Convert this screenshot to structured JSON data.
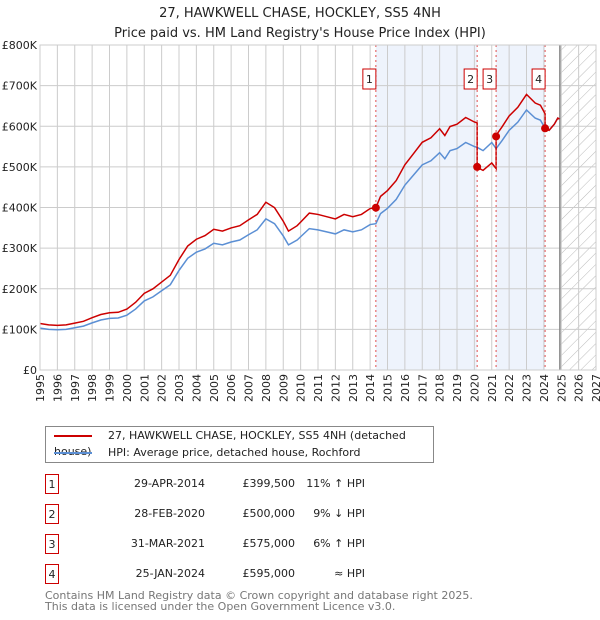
{
  "chart_data": {
    "type": "line",
    "title": "27, HAWKWELL CHASE, HOCKLEY, SS5 4NH",
    "subtitle": "Price paid vs. HM Land Registry's House Price Index (HPI)",
    "xlim": [
      1995,
      2027
    ],
    "ylim": [
      0,
      800000
    ],
    "y_ticks": [
      "£0",
      "£100K",
      "£200K",
      "£300K",
      "£400K",
      "£500K",
      "£600K",
      "£700K",
      "£800K"
    ],
    "x_ticks": [
      "1995",
      "1996",
      "1997",
      "1998",
      "1999",
      "2000",
      "2001",
      "2002",
      "2003",
      "2004",
      "2005",
      "2006",
      "2007",
      "2008",
      "2009",
      "2010",
      "2011",
      "2012",
      "2013",
      "2014",
      "2015",
      "2016",
      "2017",
      "2018",
      "2019",
      "2020",
      "2021",
      "2022",
      "2023",
      "2024",
      "2025",
      "2026",
      "2027"
    ],
    "grid": true,
    "legend_position": "bottom",
    "hpi_series": {
      "name": "HPI: Average price, detached house, Rochford",
      "color": "#5b8fd4",
      "x": [
        1995,
        1995.5,
        1996,
        1996.5,
        1997,
        1997.5,
        1998,
        1998.5,
        1999,
        1999.5,
        2000,
        2000.5,
        2001,
        2001.5,
        2002,
        2002.5,
        2003,
        2003.5,
        2004,
        2004.5,
        2005,
        2005.5,
        2006,
        2006.5,
        2007,
        2007.5,
        2008,
        2008.5,
        2009,
        2009.3,
        2009.8,
        2010,
        2010.5,
        2011,
        2011.5,
        2012,
        2012.5,
        2013,
        2013.5,
        2014,
        2014.33,
        2014.6,
        2015,
        2015.5,
        2016,
        2016.5,
        2017,
        2017.5,
        2018,
        2018.3,
        2018.6,
        2019,
        2019.5,
        2020,
        2020.16,
        2020.5,
        2021,
        2021.25,
        2021.6,
        2022,
        2022.5,
        2023,
        2023.5,
        2023.8,
        2024.07,
        2024.3,
        2024.6,
        2024.8,
        2024.9
      ],
      "y": [
        103000,
        100000,
        99000,
        100000,
        104000,
        108000,
        116000,
        123000,
        127000,
        128000,
        135000,
        150000,
        170000,
        180000,
        195000,
        210000,
        245000,
        275000,
        290000,
        298000,
        312000,
        308000,
        315000,
        320000,
        333000,
        345000,
        372000,
        360000,
        330000,
        308000,
        320000,
        328000,
        348000,
        345000,
        340000,
        335000,
        345000,
        340000,
        345000,
        358000,
        360000,
        385000,
        398000,
        420000,
        455000,
        480000,
        505000,
        515000,
        535000,
        520000,
        540000,
        545000,
        560000,
        550000,
        548000,
        540000,
        560000,
        545000,
        565000,
        590000,
        610000,
        640000,
        620000,
        615000,
        595000,
        590000,
        605000,
        620000,
        618000
      ]
    },
    "property_series": {
      "name": "27, HAWKWELL CHASE, HOCKLEY, SS5 4NH (detached house)",
      "color": "#cc0000"
    },
    "sales": [
      {
        "n": "1",
        "x": 2014.33,
        "date": "29-APR-2014",
        "price": 399500,
        "price_label": "£399,500",
        "hpi": "11% ↑ HPI"
      },
      {
        "n": "2",
        "x": 2020.16,
        "date": "28-FEB-2020",
        "price": 500000,
        "price_label": "£500,000",
        "hpi": "9% ↓ HPI"
      },
      {
        "n": "3",
        "x": 2021.25,
        "date": "31-MAR-2021",
        "price": 575000,
        "price_label": "£575,000",
        "hpi": "6% ↑ HPI"
      },
      {
        "n": "4",
        "x": 2024.07,
        "date": "25-JAN-2024",
        "price": 595000,
        "price_label": "£595,000",
        "hpi": "≈ HPI"
      }
    ],
    "shaded_ranges": [
      [
        2014.33,
        2020.16
      ],
      [
        2021.25,
        2024.07
      ]
    ],
    "forecast_from": 2024.92
  },
  "footer": {
    "line1": "Contains HM Land Registry data © Crown copyright and database right 2025.",
    "line2": "This data is licensed under the Open Government Licence v3.0."
  }
}
